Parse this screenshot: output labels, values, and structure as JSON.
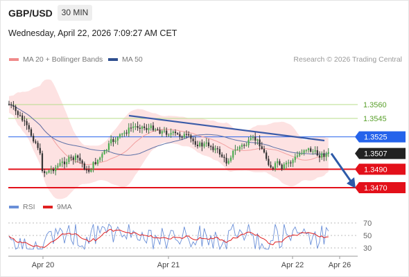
{
  "header": {
    "symbol": "GBP/USD",
    "timeframe": "30 MIN",
    "datetime": "Wednesday, April 22, 2026 7:09:27 AM CET"
  },
  "legend_main": [
    {
      "label": "MA 20 + Bollinger Bands",
      "color": "#f08a8a"
    },
    {
      "label": "MA 50",
      "color": "#2f4f8f"
    }
  ],
  "legend_rsi": [
    {
      "label": "RSI",
      "color": "#6a8fd8"
    },
    {
      "label": "9MA",
      "color": "#e02020"
    }
  ],
  "credit": "Research © 2026 Trading Central",
  "chart_data": {
    "type": "candlestick",
    "x_ticks": [
      "Apr 20",
      "Apr 21",
      "Apr 22",
      "Apr 26"
    ],
    "price_levels": [
      {
        "value": 1.356,
        "label": "1.3560",
        "kind": "target",
        "color": "#8cc63f"
      },
      {
        "value": 1.3545,
        "label": "1.3545",
        "kind": "target",
        "color": "#8cc63f"
      },
      {
        "value": 1.3525,
        "label": "1.3525",
        "kind": "pivot",
        "color": "#2563eb"
      },
      {
        "value": 1.3507,
        "label": "1.3507",
        "kind": "last-price",
        "color": "#222222"
      },
      {
        "value": 1.349,
        "label": "1.3490",
        "kind": "support",
        "color": "#e3101a"
      },
      {
        "value": 1.347,
        "label": "1.3470",
        "kind": "support",
        "color": "#e3101a"
      }
    ],
    "ylim": [
      1.3435,
      1.361
    ],
    "trendline": {
      "from": 1.3548,
      "to": 1.3521
    },
    "forecast_arrow": {
      "from": 1.3507,
      "to": 1.347
    },
    "rsi": {
      "ticks": [
        "70",
        "50",
        "30"
      ],
      "range": [
        20,
        80
      ]
    }
  }
}
